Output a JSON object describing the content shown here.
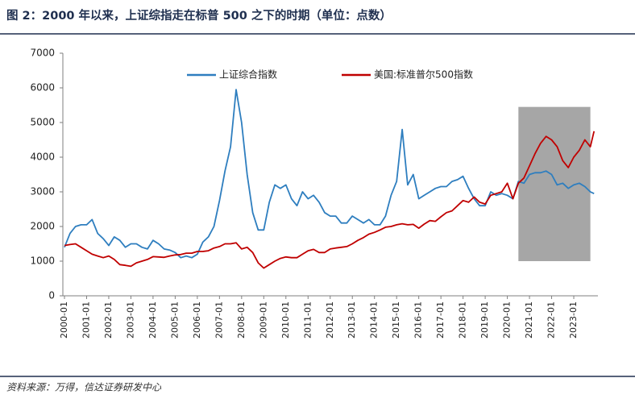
{
  "chart_data": {
    "type": "line",
    "title": "图 2：2000 年以来，上证综指走在标普 500 之下的时期（单位：点数）",
    "source": "资料来源：万得，信达证券研发中心",
    "x": [
      "2000-01",
      "2000-04",
      "2000-07",
      "2000-10",
      "2001-01",
      "2001-04",
      "2001-07",
      "2001-10",
      "2002-01",
      "2002-04",
      "2002-07",
      "2002-10",
      "2003-01",
      "2003-04",
      "2003-07",
      "2003-10",
      "2004-01",
      "2004-04",
      "2004-07",
      "2004-10",
      "2005-01",
      "2005-04",
      "2005-07",
      "2005-10",
      "2006-01",
      "2006-04",
      "2006-07",
      "2006-10",
      "2007-01",
      "2007-04",
      "2007-07",
      "2007-10",
      "2008-01",
      "2008-04",
      "2008-07",
      "2008-10",
      "2009-01",
      "2009-04",
      "2009-07",
      "2009-10",
      "2010-01",
      "2010-04",
      "2010-07",
      "2010-10",
      "2011-01",
      "2011-04",
      "2011-07",
      "2011-10",
      "2012-01",
      "2012-04",
      "2012-07",
      "2012-10",
      "2013-01",
      "2013-04",
      "2013-07",
      "2013-10",
      "2014-01",
      "2014-04",
      "2014-07",
      "2014-10",
      "2015-01",
      "2015-04",
      "2015-07",
      "2015-10",
      "2016-01",
      "2016-04",
      "2016-07",
      "2016-10",
      "2017-01",
      "2017-04",
      "2017-07",
      "2017-10",
      "2018-01",
      "2018-04",
      "2018-07",
      "2018-10",
      "2019-01",
      "2019-04",
      "2019-07",
      "2019-10",
      "2020-01",
      "2020-04",
      "2020-07",
      "2020-10",
      "2021-01",
      "2021-04",
      "2021-07",
      "2021-10",
      "2022-01",
      "2022-04",
      "2022-07",
      "2022-10",
      "2023-01",
      "2023-04",
      "2023-07",
      "2023-10",
      "2023-12"
    ],
    "series": [
      {
        "name": "上证综合指数",
        "color": "#2e7ebf",
        "values": [
          1400,
          1800,
          2000,
          2050,
          2050,
          2200,
          1800,
          1650,
          1450,
          1700,
          1600,
          1400,
          1500,
          1500,
          1400,
          1350,
          1600,
          1500,
          1350,
          1320,
          1250,
          1100,
          1150,
          1100,
          1200,
          1550,
          1700,
          2000,
          2750,
          3600,
          4300,
          5950,
          5000,
          3500,
          2400,
          1900,
          1900,
          2700,
          3200,
          3100,
          3200,
          2800,
          2600,
          3000,
          2800,
          2900,
          2700,
          2400,
          2300,
          2300,
          2100,
          2100,
          2300,
          2200,
          2100,
          2200,
          2050,
          2050,
          2300,
          2900,
          3300,
          4800,
          3200,
          3500,
          2800,
          2900,
          3000,
          3100,
          3150,
          3150,
          3300,
          3350,
          3450,
          3100,
          2800,
          2600,
          2600,
          3000,
          2900,
          2950,
          2900,
          2800,
          3300,
          3250,
          3500,
          3550,
          3550,
          3600,
          3500,
          3200,
          3250,
          3100,
          3200,
          3250,
          3150,
          3000,
          2950
        ]
      },
      {
        "name": "美国:标准普尔500指数",
        "color": "#c00000",
        "values": [
          1450,
          1480,
          1500,
          1400,
          1300,
          1200,
          1150,
          1100,
          1150,
          1050,
          900,
          880,
          850,
          950,
          1000,
          1050,
          1130,
          1120,
          1110,
          1150,
          1180,
          1190,
          1230,
          1230,
          1280,
          1280,
          1300,
          1380,
          1420,
          1500,
          1500,
          1530,
          1350,
          1400,
          1250,
          950,
          800,
          900,
          1000,
          1080,
          1120,
          1100,
          1100,
          1200,
          1300,
          1340,
          1250,
          1250,
          1350,
          1380,
          1400,
          1420,
          1500,
          1600,
          1680,
          1780,
          1830,
          1900,
          1980,
          2000,
          2050,
          2080,
          2050,
          2060,
          1950,
          2070,
          2170,
          2150,
          2280,
          2400,
          2450,
          2600,
          2750,
          2700,
          2850,
          2700,
          2650,
          2900,
          2950,
          3000,
          3250,
          2800,
          3250,
          3400,
          3750,
          4100,
          4400,
          4600,
          4500,
          4300,
          3900,
          3700,
          4000,
          4200,
          4500,
          4300,
          4750
        ]
      }
    ],
    "xlim": [
      "2000-01",
      "2024-01"
    ],
    "xticks": [
      "2000-01",
      "2001-01",
      "2002-01",
      "2003-01",
      "2004-01",
      "2005-01",
      "2006-01",
      "2007-01",
      "2008-01",
      "2009-01",
      "2010-01",
      "2011-01",
      "2012-01",
      "2013-01",
      "2014-01",
      "2015-01",
      "2016-01",
      "2017-01",
      "2018-01",
      "2019-01",
      "2020-01",
      "2021-01",
      "2022-01",
      "2023-01"
    ],
    "ylim": [
      0,
      7000
    ],
    "yticks": [
      0,
      1000,
      2000,
      3000,
      4000,
      5000,
      6000,
      7000
    ],
    "shade": {
      "x_start": "2020-07",
      "x_end": "2023-10",
      "y_start": 1000,
      "y_end": 5450,
      "color": "#a6a6a6"
    }
  }
}
